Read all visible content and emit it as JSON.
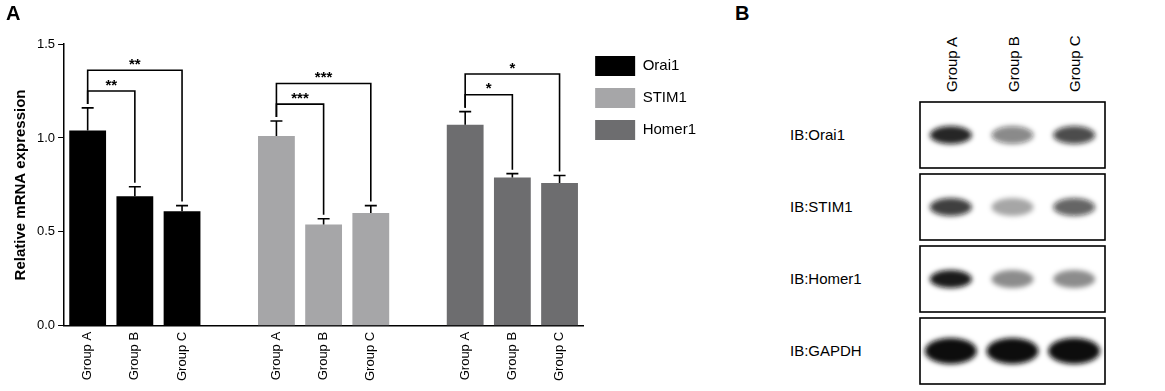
{
  "panel_labels": [
    "A",
    "B"
  ],
  "chart_data": {
    "type": "bar",
    "y_label": "Relative mRNA expression",
    "categories": [
      "Group A",
      "Group B",
      "Group C"
    ],
    "series": [
      {
        "name": "Orai1",
        "color": "#000000",
        "values": [
          1.04,
          0.69,
          0.61
        ],
        "errors": [
          0.12,
          0.05,
          0.03
        ],
        "significance": [
          {
            "from": "Group A",
            "to": "Group B",
            "label": "**"
          },
          {
            "from": "Group A",
            "to": "Group C",
            "label": "**"
          }
        ]
      },
      {
        "name": "STIM1",
        "color": "#a6a6a8",
        "values": [
          1.01,
          0.54,
          0.6
        ],
        "errors": [
          0.08,
          0.03,
          0.04
        ],
        "significance": [
          {
            "from": "Group A",
            "to": "Group B",
            "label": "***"
          },
          {
            "from": "Group A",
            "to": "Group C",
            "label": "***"
          }
        ]
      },
      {
        "name": "Homer1",
        "color": "#6d6d6f",
        "values": [
          1.07,
          0.79,
          0.76
        ],
        "errors": [
          0.07,
          0.02,
          0.04
        ],
        "significance": [
          {
            "from": "Group A",
            "to": "Group B",
            "label": "*"
          },
          {
            "from": "Group A",
            "to": "Group C",
            "label": "*"
          }
        ]
      }
    ],
    "ylim": [
      0,
      1.5
    ],
    "yticks": [
      {
        "value": 0,
        "label": "0.0"
      },
      0.5,
      {
        "value": 1,
        "label": "1.0"
      },
      1.5
    ],
    "grid": false,
    "legend": "right"
  },
  "blot": {
    "lanes": [
      "Group A",
      "Group B",
      "Group C"
    ],
    "rows": [
      {
        "label": "IB:Orai1",
        "band_intensity": [
          0.9,
          0.5,
          0.75
        ]
      },
      {
        "label": "IB:STIM1",
        "band_intensity": [
          0.8,
          0.35,
          0.65
        ]
      },
      {
        "label": "IB:Homer1",
        "band_intensity": [
          0.95,
          0.45,
          0.45
        ]
      },
      {
        "label": "IB:GAPDH",
        "band_intensity": [
          1,
          1,
          1
        ]
      }
    ]
  }
}
